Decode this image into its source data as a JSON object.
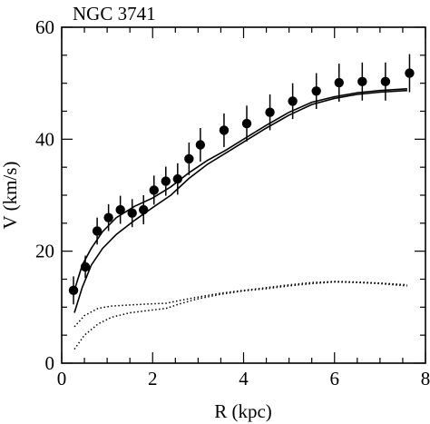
{
  "chart_data": {
    "type": "scatter",
    "title": "NGC 3741",
    "xlabel": "R (kpc)",
    "ylabel": "V (km/s)",
    "xlim": [
      0,
      8
    ],
    "ylim": [
      0,
      60
    ],
    "x_ticks": [
      0,
      2,
      4,
      6,
      8
    ],
    "y_ticks": [
      0,
      20,
      40,
      60
    ],
    "grid": false,
    "points": [
      {
        "x": 0.26,
        "y": 13.0,
        "err": 2.5
      },
      {
        "x": 0.52,
        "y": 17.2,
        "err": 2.0
      },
      {
        "x": 0.78,
        "y": 23.6,
        "err": 2.4
      },
      {
        "x": 1.03,
        "y": 26.0,
        "err": 2.4
      },
      {
        "x": 1.29,
        "y": 27.4,
        "err": 2.5
      },
      {
        "x": 1.55,
        "y": 26.8,
        "err": 2.5
      },
      {
        "x": 1.8,
        "y": 27.4,
        "err": 2.6
      },
      {
        "x": 2.03,
        "y": 30.9,
        "err": 2.6
      },
      {
        "x": 2.29,
        "y": 32.5,
        "err": 2.6
      },
      {
        "x": 2.55,
        "y": 32.9,
        "err": 2.8
      },
      {
        "x": 2.8,
        "y": 36.5,
        "err": 2.9
      },
      {
        "x": 3.05,
        "y": 39.0,
        "err": 3.0
      },
      {
        "x": 3.57,
        "y": 41.6,
        "err": 3.0
      },
      {
        "x": 4.07,
        "y": 42.8,
        "err": 3.2
      },
      {
        "x": 4.58,
        "y": 44.8,
        "err": 3.2
      },
      {
        "x": 5.08,
        "y": 46.8,
        "err": 3.2
      },
      {
        "x": 5.6,
        "y": 48.6,
        "err": 3.2
      },
      {
        "x": 6.1,
        "y": 50.1,
        "err": 3.4
      },
      {
        "x": 6.61,
        "y": 50.3,
        "err": 3.4
      },
      {
        "x": 7.12,
        "y": 50.3,
        "err": 3.4
      },
      {
        "x": 7.65,
        "y": 51.8,
        "err": 3.4
      }
    ],
    "lines": [
      {
        "style": "solid",
        "points": [
          [
            0.28,
            9.0
          ],
          [
            0.45,
            13.5
          ],
          [
            0.65,
            17.5
          ],
          [
            0.9,
            20.5
          ],
          [
            1.2,
            23.0
          ],
          [
            1.6,
            25.5
          ],
          [
            2.0,
            27.8
          ],
          [
            2.4,
            30.0
          ],
          [
            2.8,
            33.0
          ],
          [
            3.2,
            35.5
          ],
          [
            3.6,
            37.5
          ],
          [
            4.0,
            39.5
          ],
          [
            4.5,
            42.0
          ],
          [
            5.0,
            44.3
          ],
          [
            5.5,
            46.2
          ],
          [
            6.0,
            47.3
          ],
          [
            6.5,
            48.0
          ],
          [
            7.0,
            48.4
          ],
          [
            7.6,
            48.7
          ]
        ]
      },
      {
        "style": "solid",
        "points": [
          [
            0.28,
            13.0
          ],
          [
            0.45,
            17.5
          ],
          [
            0.65,
            20.5
          ],
          [
            0.9,
            23.5
          ],
          [
            1.2,
            26.0
          ],
          [
            1.6,
            28.0
          ],
          [
            2.0,
            29.5
          ],
          [
            2.4,
            31.5
          ],
          [
            2.8,
            34.0
          ],
          [
            3.2,
            36.2
          ],
          [
            3.6,
            38.0
          ],
          [
            4.0,
            40.0
          ],
          [
            4.5,
            42.5
          ],
          [
            5.0,
            44.8
          ],
          [
            5.5,
            46.6
          ],
          [
            6.0,
            47.6
          ],
          [
            6.5,
            48.3
          ],
          [
            7.0,
            48.7
          ],
          [
            7.6,
            49.0
          ]
        ]
      },
      {
        "style": "dotted",
        "points": [
          [
            0.28,
            6.5
          ],
          [
            0.5,
            8.5
          ],
          [
            0.8,
            9.8
          ],
          [
            1.1,
            10.2
          ],
          [
            1.5,
            10.4
          ],
          [
            2.0,
            10.6
          ],
          [
            2.3,
            10.7
          ],
          [
            2.6,
            11.2
          ],
          [
            3.0,
            11.8
          ],
          [
            3.5,
            12.5
          ],
          [
            4.0,
            13.0
          ],
          [
            4.5,
            13.5
          ],
          [
            5.0,
            14.0
          ],
          [
            5.5,
            14.4
          ],
          [
            6.0,
            14.6
          ],
          [
            6.5,
            14.5
          ],
          [
            7.0,
            14.3
          ],
          [
            7.6,
            14.0
          ]
        ]
      },
      {
        "style": "dotted",
        "points": [
          [
            0.28,
            2.5
          ],
          [
            0.5,
            5.0
          ],
          [
            0.8,
            7.0
          ],
          [
            1.1,
            8.2
          ],
          [
            1.5,
            9.0
          ],
          [
            2.0,
            9.5
          ],
          [
            2.3,
            9.8
          ],
          [
            2.6,
            10.6
          ],
          [
            3.0,
            11.5
          ],
          [
            3.5,
            12.3
          ],
          [
            4.0,
            12.9
          ],
          [
            4.5,
            13.3
          ],
          [
            5.0,
            13.8
          ],
          [
            5.5,
            14.2
          ],
          [
            6.0,
            14.5
          ],
          [
            6.5,
            14.4
          ],
          [
            7.0,
            14.2
          ],
          [
            7.6,
            13.8
          ]
        ]
      }
    ]
  }
}
